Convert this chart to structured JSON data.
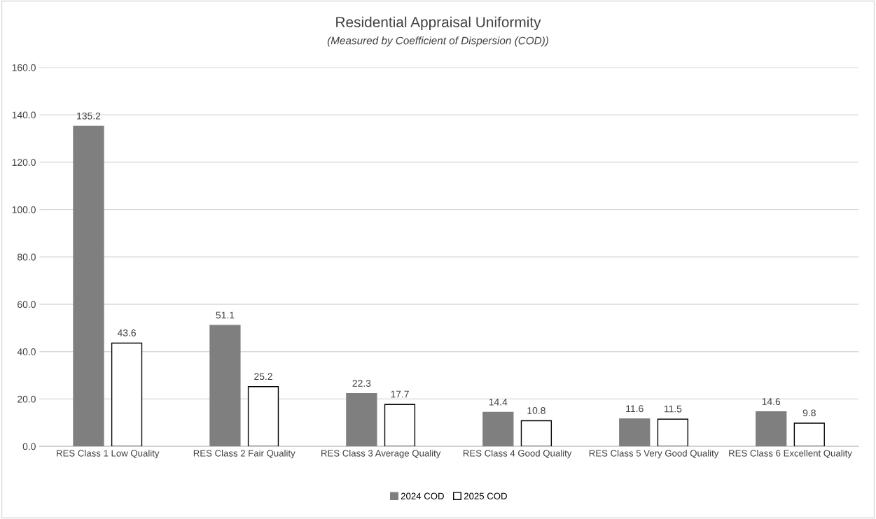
{
  "chart_data": {
    "type": "bar",
    "title": "Residential Appraisal Uniformity",
    "subtitle": "(Measured by Coefficient of Dispersion (COD))",
    "categories": [
      "RES Class 1 Low Quality",
      "RES Class 2 Fair Quality",
      "RES Class 3 Average Quality",
      "RES Class 4 Good Quality",
      "RES Class 5 Very Good Quality",
      "RES Class 6 Excellent Quality"
    ],
    "series": [
      {
        "name": "2024 COD",
        "color": "#7f7f7f",
        "values": [
          135.2,
          51.1,
          22.3,
          14.4,
          11.6,
          14.6
        ]
      },
      {
        "name": "2025 COD",
        "color": "#ffffff",
        "values": [
          43.6,
          25.2,
          17.7,
          10.8,
          11.5,
          9.8
        ]
      }
    ],
    "ylim": [
      0,
      160
    ],
    "yticks": [
      {
        "value": 0,
        "label": "0.0"
      },
      {
        "value": 20,
        "label": "20.0"
      },
      {
        "value": 40,
        "label": "40.0"
      },
      {
        "value": 60,
        "label": "60.0"
      },
      {
        "value": 80,
        "label": "80.0"
      },
      {
        "value": 100,
        "label": "100.0"
      },
      {
        "value": 120,
        "label": "120.0"
      },
      {
        "value": 140,
        "label": "140.0"
      },
      {
        "value": 160,
        "label": "160.0"
      }
    ],
    "data_labels": true,
    "grid": "y",
    "legend": "bottom"
  }
}
